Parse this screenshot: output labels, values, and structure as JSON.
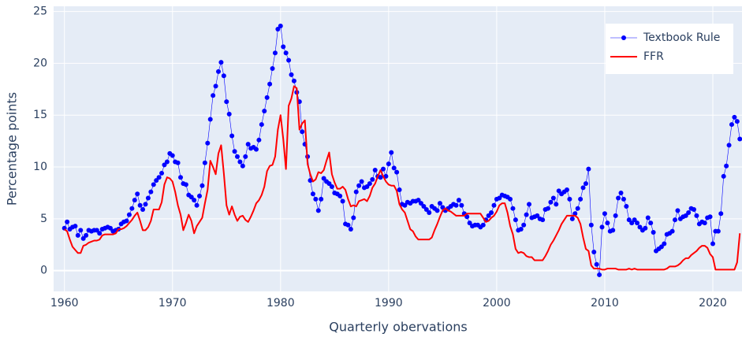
{
  "chart_data": {
    "type": "line",
    "x_label": "Quarterly obervations",
    "y_label": "Percentage points",
    "x": [
      1960,
      1960.25,
      1960.5,
      1960.75,
      1961,
      1961.25,
      1961.5,
      1961.75,
      1962,
      1962.25,
      1962.5,
      1962.75,
      1963,
      1963.25,
      1963.5,
      1963.75,
      1964,
      1964.25,
      1964.5,
      1964.75,
      1965,
      1965.25,
      1965.5,
      1965.75,
      1966,
      1966.25,
      1966.5,
      1966.75,
      1967,
      1967.25,
      1967.5,
      1967.75,
      1968,
      1968.25,
      1968.5,
      1968.75,
      1969,
      1969.25,
      1969.5,
      1969.75,
      1970,
      1970.25,
      1970.5,
      1970.75,
      1971,
      1971.25,
      1971.5,
      1971.75,
      1972,
      1972.25,
      1972.5,
      1972.75,
      1973,
      1973.25,
      1973.5,
      1973.75,
      1974,
      1974.25,
      1974.5,
      1974.75,
      1975,
      1975.25,
      1975.5,
      1975.75,
      1976,
      1976.25,
      1976.5,
      1976.75,
      1977,
      1977.25,
      1977.5,
      1977.75,
      1978,
      1978.25,
      1978.5,
      1978.75,
      1979,
      1979.25,
      1979.5,
      1979.75,
      1980,
      1980.25,
      1980.5,
      1980.75,
      1981,
      1981.25,
      1981.5,
      1981.75,
      1982,
      1982.25,
      1982.5,
      1982.75,
      1983,
      1983.25,
      1983.5,
      1983.75,
      1984,
      1984.25,
      1984.5,
      1984.75,
      1985,
      1985.25,
      1985.5,
      1985.75,
      1986,
      1986.25,
      1986.5,
      1986.75,
      1987,
      1987.25,
      1987.5,
      1987.75,
      1988,
      1988.25,
      1988.5,
      1988.75,
      1989,
      1989.25,
      1989.5,
      1989.75,
      1990,
      1990.25,
      1990.5,
      1990.75,
      1991,
      1991.25,
      1991.5,
      1991.75,
      1992,
      1992.25,
      1992.5,
      1992.75,
      1993,
      1993.25,
      1993.5,
      1993.75,
      1994,
      1994.25,
      1994.5,
      1994.75,
      1995,
      1995.25,
      1995.5,
      1995.75,
      1996,
      1996.25,
      1996.5,
      1996.75,
      1997,
      1997.25,
      1997.5,
      1997.75,
      1998,
      1998.25,
      1998.5,
      1998.75,
      1999,
      1999.25,
      1999.5,
      1999.75,
      2000,
      2000.25,
      2000.5,
      2000.75,
      2001,
      2001.25,
      2001.5,
      2001.75,
      2002,
      2002.25,
      2002.5,
      2002.75,
      2003,
      2003.25,
      2003.5,
      2003.75,
      2004,
      2004.25,
      2004.5,
      2004.75,
      2005,
      2005.25,
      2005.5,
      2005.75,
      2006,
      2006.25,
      2006.5,
      2006.75,
      2007,
      2007.25,
      2007.5,
      2007.75,
      2008,
      2008.25,
      2008.5,
      2008.75,
      2009,
      2009.25,
      2009.5,
      2009.75,
      2010,
      2010.25,
      2010.5,
      2010.75,
      2011,
      2011.25,
      2011.5,
      2011.75,
      2012,
      2012.25,
      2012.5,
      2012.75,
      2013,
      2013.25,
      2013.5,
      2013.75,
      2014,
      2014.25,
      2014.5,
      2014.75,
      2015,
      2015.25,
      2015.5,
      2015.75,
      2016,
      2016.25,
      2016.5,
      2016.75,
      2017,
      2017.25,
      2017.5,
      2017.75,
      2018,
      2018.25,
      2018.5,
      2018.75,
      2019,
      2019.25,
      2019.5,
      2019.75,
      2020,
      2020.25,
      2020.5,
      2020.75,
      2021,
      2021.25,
      2021.5,
      2021.75,
      2022,
      2022.25,
      2022.5
    ],
    "series": [
      {
        "name": "Textbook Rule",
        "color": "#0000ff",
        "mode": "lines+markers",
        "values": [
          4.1,
          4.7,
          4.0,
          4.2,
          4.3,
          3.4,
          3.9,
          3.1,
          3.4,
          3.9,
          3.8,
          3.9,
          3.9,
          3.6,
          4.0,
          4.1,
          4.2,
          4.1,
          3.8,
          3.9,
          4.0,
          4.5,
          4.7,
          4.8,
          5.4,
          6.0,
          6.8,
          7.4,
          6.3,
          5.9,
          6.4,
          7.0,
          7.6,
          8.3,
          8.7,
          9.0,
          9.4,
          10.2,
          10.5,
          11.3,
          11.1,
          10.5,
          10.4,
          9.0,
          8.4,
          8.3,
          7.3,
          7.1,
          6.8,
          6.3,
          7.2,
          8.2,
          10.4,
          12.3,
          14.6,
          16.9,
          17.8,
          19.2,
          20.1,
          18.8,
          16.3,
          15.1,
          13.0,
          11.5,
          11.0,
          10.5,
          10.1,
          11.0,
          12.2,
          11.8,
          11.9,
          11.7,
          12.6,
          14.1,
          15.4,
          16.7,
          18.0,
          19.5,
          21.0,
          23.3,
          23.6,
          21.6,
          21.0,
          20.3,
          18.9,
          18.3,
          17.2,
          16.3,
          13.4,
          12.2,
          11.0,
          8.7,
          7.4,
          6.9,
          5.8,
          6.9,
          8.9,
          8.6,
          8.4,
          8.1,
          7.5,
          7.4,
          7.2,
          6.7,
          4.5,
          4.4,
          4.0,
          5.1,
          7.6,
          8.2,
          8.6,
          8.0,
          8.1,
          8.4,
          8.8,
          9.7,
          9.1,
          9.0,
          9.8,
          9.1,
          10.3,
          11.4,
          9.9,
          9.5,
          7.8,
          6.4,
          6.3,
          6.6,
          6.5,
          6.7,
          6.7,
          6.8,
          6.5,
          6.2,
          5.9,
          5.6,
          6.2,
          6.0,
          5.8,
          6.5,
          6.1,
          5.8,
          6.0,
          6.2,
          6.4,
          6.3,
          6.8,
          6.3,
          5.5,
          5.2,
          4.6,
          4.3,
          4.4,
          4.4,
          4.2,
          4.4,
          4.9,
          5.3,
          5.6,
          6.3,
          6.9,
          7.0,
          7.3,
          7.2,
          7.1,
          6.9,
          6.0,
          4.9,
          3.9,
          4.0,
          4.4,
          5.4,
          6.4,
          5.1,
          5.2,
          5.3,
          5.0,
          4.9,
          5.9,
          6.0,
          6.6,
          7.0,
          6.4,
          7.7,
          7.4,
          7.6,
          7.8,
          6.9,
          5.0,
          5.5,
          6.0,
          6.9,
          8.0,
          8.4,
          9.8,
          4.4,
          1.8,
          0.6,
          -0.4,
          4.2,
          5.5,
          4.6,
          3.8,
          3.9,
          5.3,
          7.0,
          7.5,
          6.9,
          6.2,
          4.9,
          4.6,
          4.9,
          4.6,
          4.2,
          3.9,
          4.1,
          5.1,
          4.6,
          3.7,
          1.9,
          2.1,
          2.3,
          2.6,
          3.5,
          3.6,
          3.8,
          4.9,
          5.8,
          5.0,
          5.2,
          5.3,
          5.6,
          6.0,
          5.9,
          5.3,
          4.5,
          4.7,
          4.6,
          5.1,
          5.2,
          2.6,
          3.8,
          3.8,
          5.5,
          9.1,
          10.1,
          12.1,
          14.1,
          14.8,
          14.4,
          12.7
        ]
      },
      {
        "name": "FFR",
        "color": "#ff0000",
        "mode": "lines",
        "values": [
          4.0,
          3.8,
          3.0,
          2.3,
          2.0,
          1.7,
          1.7,
          2.4,
          2.5,
          2.7,
          2.8,
          2.9,
          2.9,
          3.0,
          3.4,
          3.5,
          3.5,
          3.5,
          3.5,
          3.6,
          4.0,
          4.0,
          4.1,
          4.3,
          4.6,
          4.9,
          5.3,
          5.6,
          4.8,
          3.9,
          3.9,
          4.2,
          4.8,
          5.9,
          5.9,
          5.9,
          6.6,
          8.3,
          9.0,
          8.9,
          8.6,
          7.6,
          6.3,
          5.4,
          3.9,
          4.6,
          5.4,
          4.8,
          3.6,
          4.3,
          4.7,
          5.1,
          6.5,
          7.8,
          10.6,
          10.0,
          9.3,
          11.3,
          12.1,
          9.4,
          6.3,
          5.4,
          6.2,
          5.4,
          4.8,
          5.2,
          5.3,
          4.9,
          4.7,
          5.2,
          5.8,
          6.5,
          6.8,
          7.3,
          8.1,
          9.6,
          10.1,
          10.2,
          11.0,
          13.6,
          15.0,
          12.7,
          9.8,
          15.9,
          16.6,
          17.8,
          17.6,
          13.6,
          14.2,
          14.5,
          10.3,
          9.3,
          8.6,
          8.8,
          9.5,
          9.4,
          9.7,
          10.6,
          11.4,
          9.3,
          8.5,
          7.9,
          7.9,
          8.1,
          7.8,
          6.9,
          6.2,
          6.3,
          6.2,
          6.7,
          6.8,
          6.9,
          6.7,
          7.2,
          8.0,
          8.4,
          9.1,
          9.7,
          9.1,
          8.6,
          8.3,
          8.2,
          8.2,
          7.7,
          6.4,
          5.9,
          5.6,
          4.8,
          4.0,
          3.8,
          3.3,
          3.0,
          3.0,
          3.0,
          3.0,
          3.0,
          3.2,
          3.9,
          4.5,
          5.2,
          5.8,
          6.0,
          5.8,
          5.7,
          5.5,
          5.3,
          5.3,
          5.3,
          5.3,
          5.5,
          5.5,
          5.5,
          5.5,
          5.5,
          5.5,
          5.1,
          4.7,
          4.8,
          5.1,
          5.3,
          5.7,
          6.3,
          6.5,
          6.5,
          5.6,
          4.3,
          3.5,
          2.1,
          1.7,
          1.8,
          1.7,
          1.4,
          1.3,
          1.3,
          1.0,
          1.0,
          1.0,
          1.0,
          1.4,
          1.9,
          2.5,
          2.9,
          3.4,
          3.9,
          4.5,
          4.9,
          5.3,
          5.3,
          5.3,
          5.3,
          5.1,
          4.5,
          3.2,
          2.1,
          1.9,
          0.5,
          0.2,
          0.2,
          0.2,
          0.1,
          0.1,
          0.2,
          0.2,
          0.2,
          0.2,
          0.1,
          0.1,
          0.1,
          0.1,
          0.2,
          0.1,
          0.2,
          0.1,
          0.1,
          0.1,
          0.1,
          0.1,
          0.1,
          0.1,
          0.1,
          0.1,
          0.1,
          0.1,
          0.2,
          0.4,
          0.4,
          0.4,
          0.5,
          0.7,
          1.0,
          1.2,
          1.2,
          1.5,
          1.7,
          1.9,
          2.2,
          2.4,
          2.4,
          2.2,
          1.6,
          1.3,
          0.1,
          0.1,
          0.1,
          0.1,
          0.1,
          0.1,
          0.1,
          0.1,
          0.8,
          3.6
        ]
      }
    ],
    "xlim": [
      1959,
      2022.7
    ],
    "ylim": [
      -2,
      25.5
    ],
    "xticks": [
      1960,
      1970,
      1980,
      1990,
      2000,
      2010,
      2020
    ],
    "yticks": [
      0,
      5,
      10,
      15,
      20,
      25
    ],
    "grid": true,
    "legend": "top-right"
  }
}
